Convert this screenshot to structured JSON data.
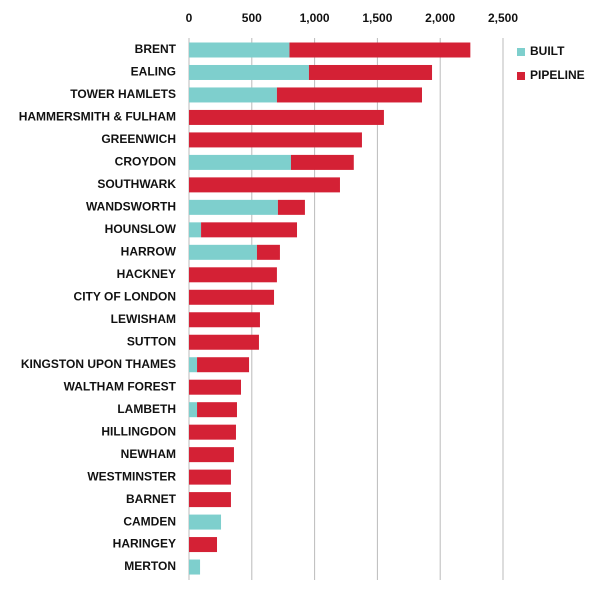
{
  "chart_data": {
    "type": "stacked-barh",
    "categories": [
      "BRENT",
      "EALING",
      "TOWER HAMLETS",
      "HAMMERSMITH & FULHAM",
      "GREENWICH",
      "CROYDON",
      "SOUTHWARK",
      "WANDSWORTH",
      "HOUNSLOW",
      "HARROW",
      "HACKNEY",
      "CITY OF LONDON",
      "LEWISHAM",
      "SUTTON",
      "KINGSTON UPON THAMES",
      "WALTHAM FOREST",
      "LAMBETH",
      "HILLINGDON",
      "NEWHAM",
      "WESTMINSTER",
      "BARNET",
      "CAMDEN",
      "HARINGEY",
      "MERTON"
    ],
    "series": [
      {
        "name": "BUILT",
        "color": "#7ecfcd",
        "values": [
          800,
          955,
          700,
          0,
          0,
          812,
          0,
          708,
          96,
          541,
          0,
          0,
          0,
          0,
          64,
          0,
          64,
          0,
          0,
          0,
          0,
          255,
          0,
          88
        ]
      },
      {
        "name": "PIPELINE",
        "color": "#d42135",
        "values": [
          1440,
          980,
          1155,
          1552,
          1377,
          500,
          1202,
          215,
          764,
          183,
          700,
          677,
          565,
          557,
          414,
          414,
          318,
          374,
          358,
          334,
          334,
          0,
          223,
          0
        ]
      }
    ],
    "xlim": [
      0,
      2500
    ],
    "xticks": [
      0,
      500,
      {
        "value": 1000,
        "label": "1,000"
      },
      {
        "value": 1500,
        "label": "1,500"
      },
      {
        "value": 2000,
        "label": "2,000"
      },
      {
        "value": 2500,
        "label": "2,500"
      }
    ],
    "grid": true,
    "legend": "top-right"
  }
}
